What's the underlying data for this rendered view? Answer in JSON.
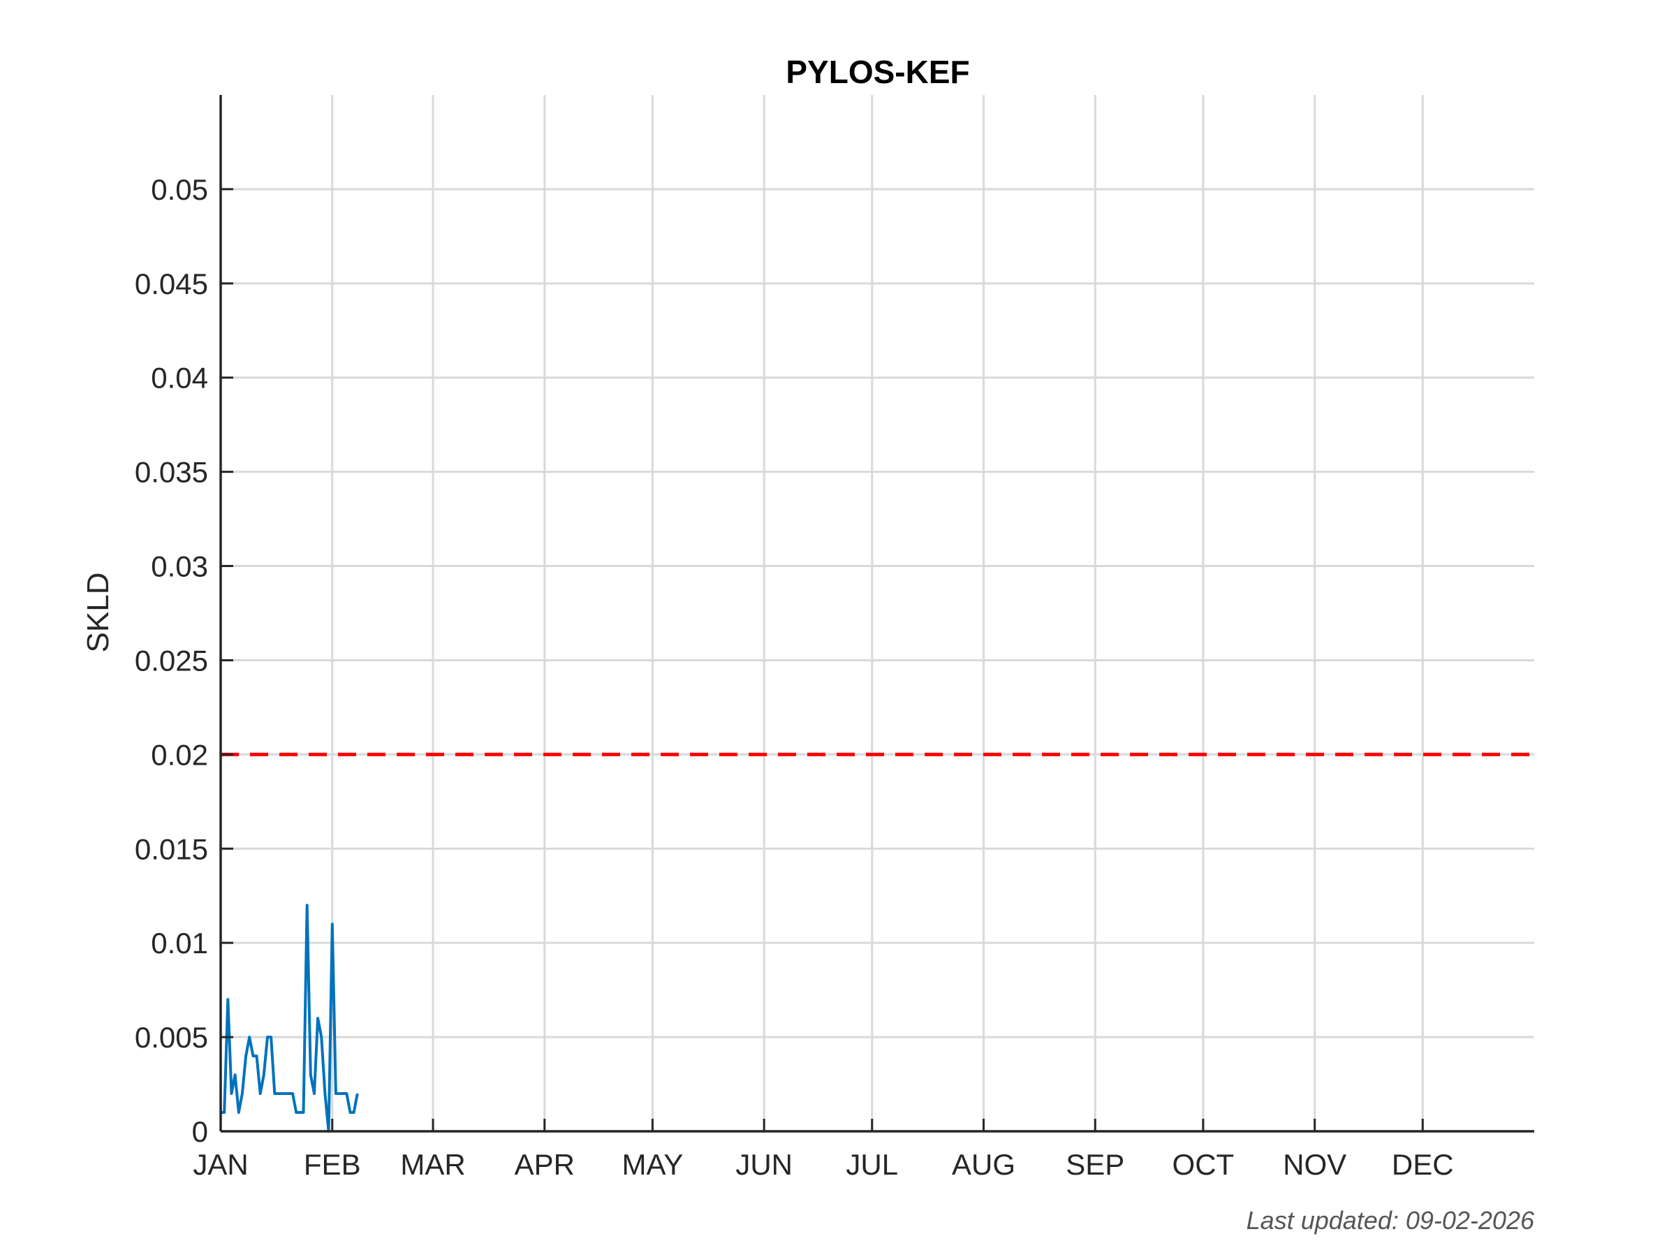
{
  "chart_data": {
    "type": "line",
    "title": "PYLOS-KEF",
    "xlabel": "",
    "ylabel": "SKLD",
    "footer": "Last updated: 09-02-2026",
    "x_ticks": [
      "JAN",
      "FEB",
      "MAR",
      "APR",
      "MAY",
      "JUN",
      "JUL",
      "AUG",
      "SEP",
      "OCT",
      "NOV",
      "DEC"
    ],
    "y_ticks": [
      "0",
      "0.005",
      "0.01",
      "0.015",
      "0.02",
      "0.025",
      "0.03",
      "0.035",
      "0.04",
      "0.045",
      "0.05"
    ],
    "xlim": [
      1,
      366
    ],
    "ylim": [
      0,
      0.055
    ],
    "grid": true,
    "threshold": {
      "value": 0.02,
      "style": "dashed",
      "color": "#ff0000"
    },
    "series": [
      {
        "color": "#0072bd",
        "x": [
          1,
          2,
          3,
          4,
          5,
          6,
          7,
          8,
          9,
          10,
          11,
          12,
          13,
          14,
          15,
          16,
          17,
          18,
          19,
          20,
          21,
          22,
          23,
          24,
          25,
          26,
          27,
          28,
          29,
          30,
          31,
          32,
          33,
          34,
          35,
          36,
          37,
          38,
          39
        ],
        "y": [
          0.001,
          0.001,
          0.007,
          0.002,
          0.003,
          0.001,
          0.002,
          0.004,
          0.005,
          0.004,
          0.004,
          0.002,
          0.003,
          0.005,
          0.005,
          0.002,
          0.002,
          0.002,
          0.002,
          0.002,
          0.002,
          0.001,
          0.001,
          0.001,
          0.012,
          0.003,
          0.002,
          0.006,
          0.005,
          0.002,
          0.0,
          0.011,
          0.002,
          0.002,
          0.002,
          0.002,
          0.001,
          0.001,
          0.002
        ]
      }
    ]
  }
}
